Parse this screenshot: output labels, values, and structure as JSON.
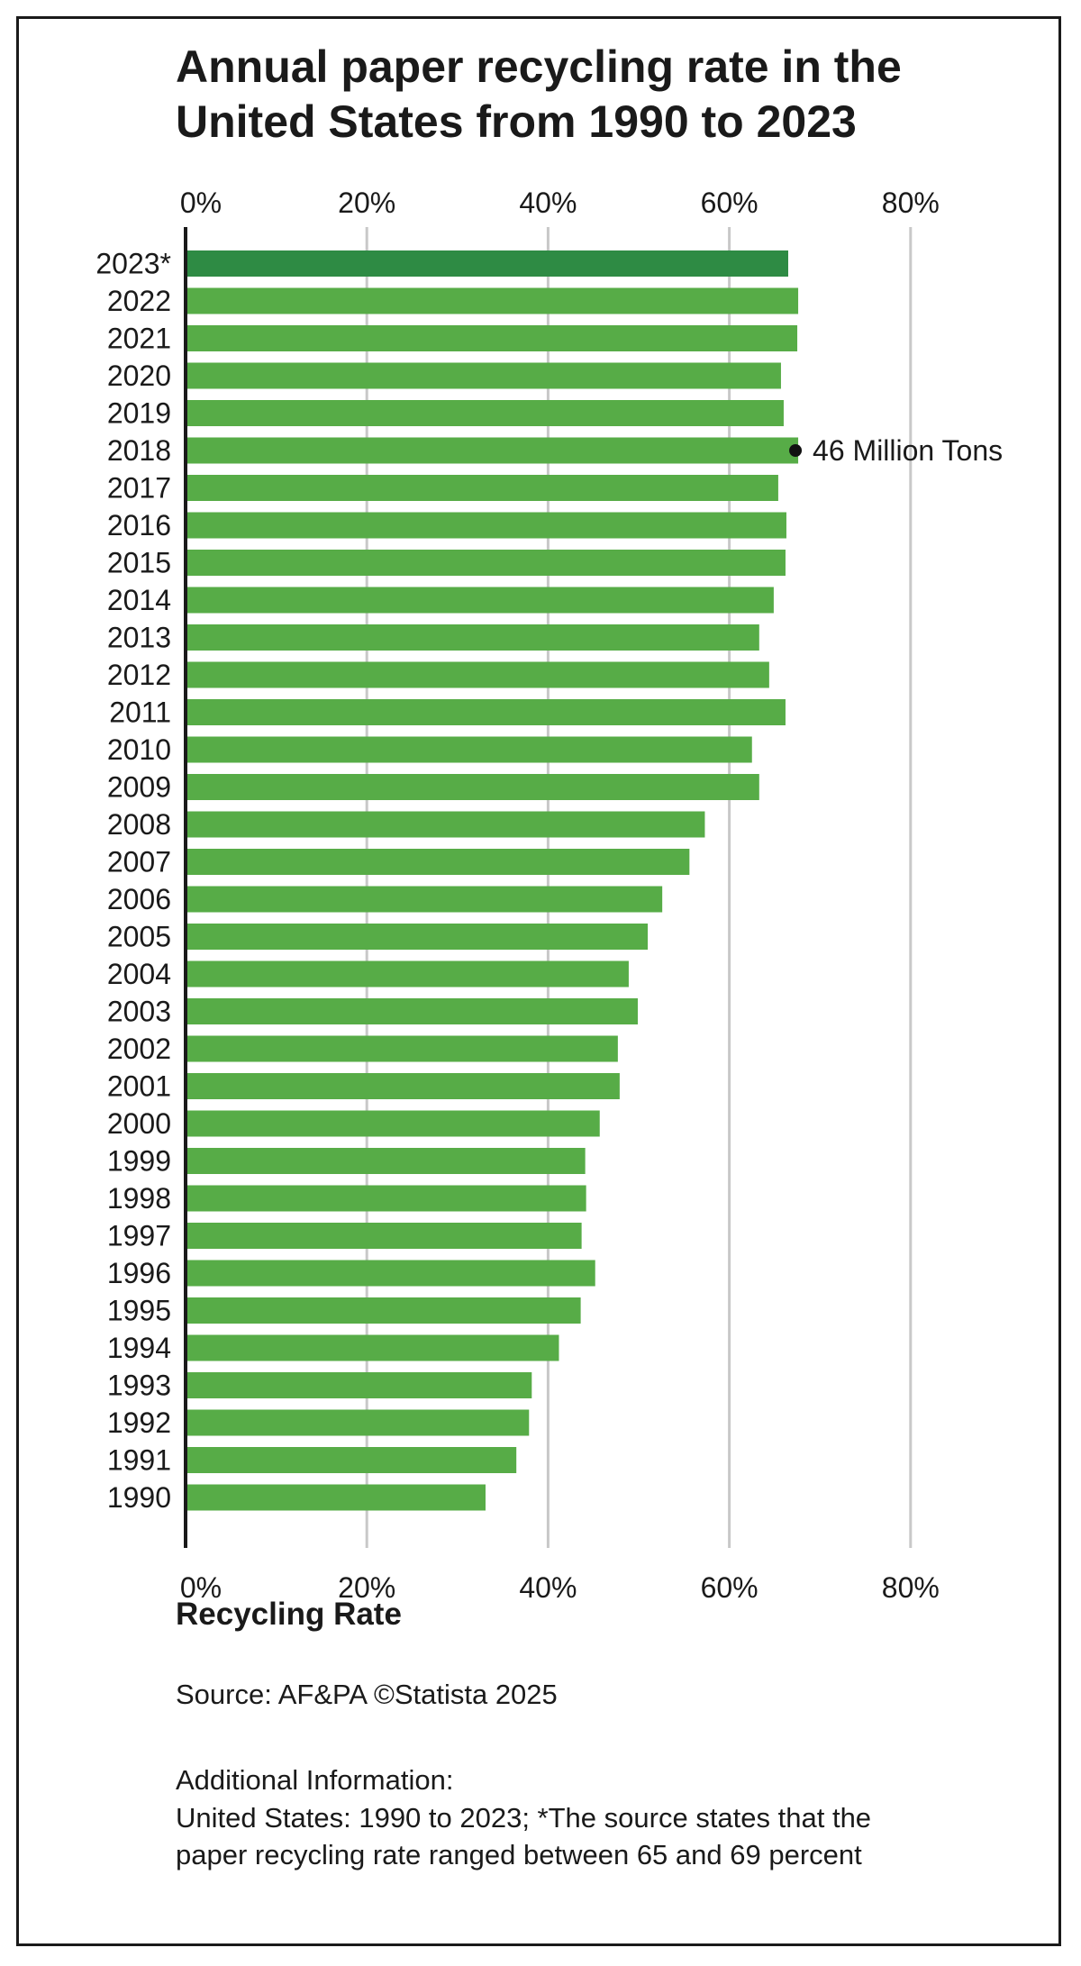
{
  "title_lines": [
    "Annual paper recycling rate in the",
    "United States from 1990 to 2023"
  ],
  "chart_data": {
    "type": "bar",
    "orientation": "horizontal",
    "title": "Annual paper recycling rate in the United States from 1990 to 2023",
    "xlabel": "Recycling Rate",
    "ylabel": "",
    "xlim": [
      0,
      80
    ],
    "x_ticks": [
      "0%",
      "20%",
      "40%",
      "60%",
      "80%"
    ],
    "grid": true,
    "categories": [
      "2023*",
      "2022",
      "2021",
      "2020",
      "2019",
      "2018",
      "2017",
      "2016",
      "2015",
      "2014",
      "2013",
      "2012",
      "2011",
      "2010",
      "2009",
      "2008",
      "2007",
      "2006",
      "2005",
      "2004",
      "2003",
      "2002",
      "2001",
      "2000",
      "1999",
      "1998",
      "1997",
      "1996",
      "1995",
      "1994",
      "1993",
      "1992",
      "1991",
      "1990"
    ],
    "values": [
      66.5,
      67.6,
      67.5,
      65.7,
      66.0,
      67.6,
      65.4,
      66.3,
      66.2,
      64.9,
      63.3,
      64.4,
      66.2,
      62.5,
      63.3,
      57.3,
      55.6,
      52.6,
      51.0,
      48.9,
      49.9,
      47.7,
      47.9,
      45.7,
      44.1,
      44.2,
      43.7,
      45.2,
      43.6,
      41.2,
      38.2,
      37.9,
      36.5,
      33.1
    ],
    "colors": {
      "bar": "#57ac47",
      "highlight_bar": "#2e8b44",
      "grid": "#c8c8c8",
      "axis": "#1a1a1a"
    },
    "highlight_category": "2023*",
    "annotations": [
      {
        "category": "2018",
        "text": "46 Million Tons",
        "marker": "dot"
      }
    ]
  },
  "footer": {
    "source": "Source: AF&PA ©Statista 2025",
    "info_heading": "Additional Information:",
    "info_lines": [
      "United States: 1990 to 2023; *The source states that the",
      "paper recycling rate ranged between 65 and 69 percent"
    ]
  }
}
